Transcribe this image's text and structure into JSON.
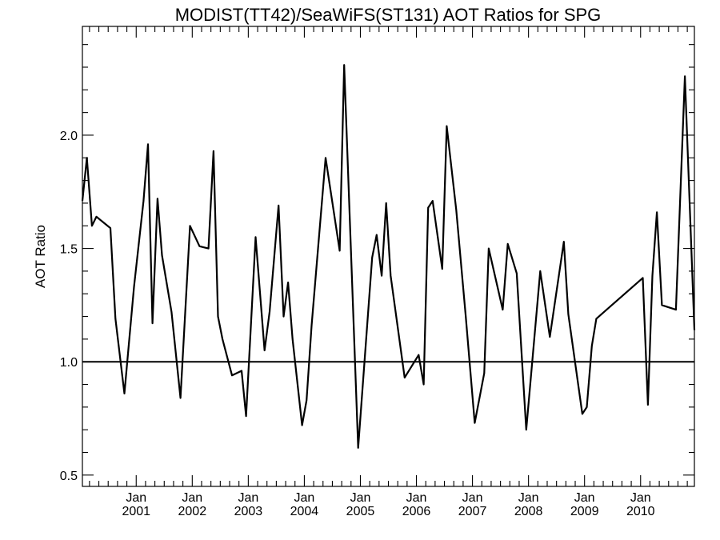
{
  "chart_data": {
    "type": "line",
    "title": "MODIST(TT42)/SeaWiFS(ST131)  AOT Ratios for SPG",
    "xlabel": "",
    "ylabel": "AOT Ratio",
    "xlim": [
      2000.04,
      2010.96
    ],
    "ylim": [
      0.45,
      2.48
    ],
    "y_ticks": [
      0.5,
      1.0,
      1.5,
      2.0
    ],
    "y_tick_labels": [
      "0.5",
      "1.0",
      "1.5",
      "2.0"
    ],
    "y_minor_step": 0.1,
    "x_ticks": [
      2001,
      2002,
      2003,
      2004,
      2005,
      2006,
      2007,
      2008,
      2009,
      2010
    ],
    "x_tick_labels": [
      {
        "month": "Jan",
        "year": "2001"
      },
      {
        "month": "Jan",
        "year": "2002"
      },
      {
        "month": "Jan",
        "year": "2003"
      },
      {
        "month": "Jan",
        "year": "2004"
      },
      {
        "month": "Jan",
        "year": "2005"
      },
      {
        "month": "Jan",
        "year": "2006"
      },
      {
        "month": "Jan",
        "year": "2007"
      },
      {
        "month": "Jan",
        "year": "2008"
      },
      {
        "month": "Jan",
        "year": "2009"
      },
      {
        "month": "Jan",
        "year": "2010"
      }
    ],
    "x_minor_step_months": 2,
    "reference_line": 1.0,
    "grid": false,
    "series": [
      {
        "color": "#000000",
        "x": [
          2000.04,
          2000.12,
          2000.21,
          2000.29,
          2000.54,
          2000.63,
          2000.79,
          2000.96,
          2001.13,
          2001.21,
          2001.29,
          2001.38,
          2001.46,
          2001.63,
          2001.79,
          2001.96,
          2002.13,
          2002.29,
          2002.38,
          2002.46,
          2002.54,
          2002.71,
          2002.88,
          2002.96,
          2003.13,
          2003.29,
          2003.38,
          2003.54,
          2003.63,
          2003.71,
          2003.79,
          2003.96,
          2004.04,
          2004.13,
          2004.38,
          2004.63,
          2004.71,
          2004.96,
          2005.21,
          2005.29,
          2005.38,
          2005.46,
          2005.54,
          2005.79,
          2006.04,
          2006.13,
          2006.21,
          2006.29,
          2006.46,
          2006.54,
          2006.71,
          2006.88,
          2007.04,
          2007.21,
          2007.29,
          2007.54,
          2007.63,
          2007.79,
          2007.96,
          2008.21,
          2008.38,
          2008.63,
          2008.71,
          2008.96,
          2009.04,
          2009.13,
          2009.21,
          2010.04,
          2010.13,
          2010.21,
          2010.29,
          2010.38,
          2010.63,
          2010.79,
          2010.96
        ],
        "y": [
          1.71,
          1.9,
          1.6,
          1.64,
          1.59,
          1.19,
          0.86,
          1.33,
          1.71,
          1.96,
          1.17,
          1.72,
          1.47,
          1.22,
          0.84,
          1.6,
          1.51,
          1.5,
          1.93,
          1.2,
          1.1,
          0.94,
          0.96,
          0.76,
          1.55,
          1.05,
          1.22,
          1.69,
          1.2,
          1.35,
          1.1,
          0.72,
          0.83,
          1.16,
          1.9,
          1.49,
          2.31,
          0.62,
          1.46,
          1.56,
          1.38,
          1.7,
          1.38,
          0.93,
          1.03,
          0.9,
          1.68,
          1.71,
          1.41,
          2.04,
          1.67,
          1.2,
          0.73,
          0.95,
          1.5,
          1.23,
          1.52,
          1.39,
          0.7,
          1.4,
          1.11,
          1.53,
          1.21,
          0.77,
          0.8,
          1.07,
          1.19,
          1.37,
          0.81,
          1.38,
          1.66,
          1.25,
          1.23,
          2.26,
          1.14
        ]
      }
    ]
  }
}
